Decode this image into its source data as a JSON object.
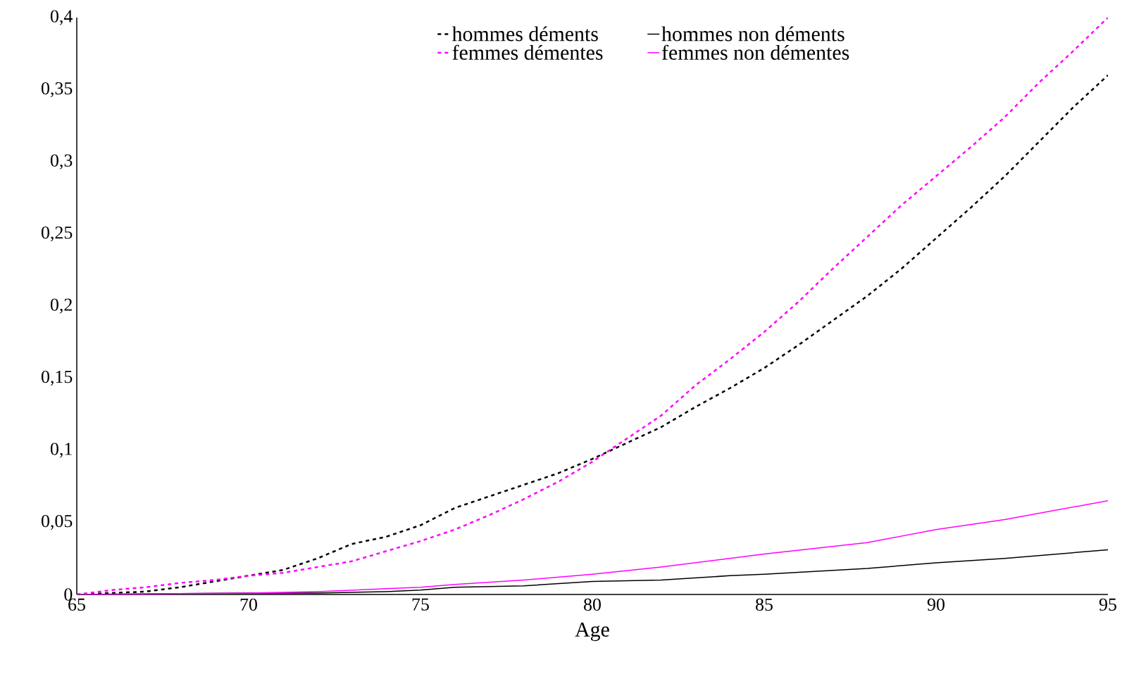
{
  "chart_data": {
    "type": "line",
    "xlabel": "Age",
    "xlim": [
      65,
      95
    ],
    "ylim": [
      0,
      0.4
    ],
    "xticks": [
      65,
      70,
      75,
      80,
      85,
      90,
      95
    ],
    "yticks": [
      0,
      {
        "value": 0.05,
        "label": "0,05"
      },
      {
        "value": 0.1,
        "label": "0,1"
      },
      {
        "value": 0.15,
        "label": "0,15"
      },
      {
        "value": 0.2,
        "label": "0,2"
      },
      {
        "value": 0.25,
        "label": "0,25"
      },
      {
        "value": 0.3,
        "label": "0,3"
      },
      {
        "value": 0.35,
        "label": "0,35"
      },
      {
        "value": 0.4,
        "label": "0,4"
      }
    ],
    "grid": false,
    "legend": "top",
    "marker": "none",
    "series": [
      {
        "name": "hommes déments",
        "color": "#000000",
        "line_style": "dotted",
        "x": [
          65,
          66,
          67,
          68,
          69,
          70,
          71,
          72,
          73,
          74,
          75,
          76,
          77,
          78,
          79,
          80,
          81,
          82,
          83,
          84,
          85,
          86,
          87,
          88,
          89,
          90,
          91,
          92,
          93,
          94,
          95
        ],
        "values": [
          0,
          0.001,
          0.002,
          0.005,
          0.009,
          0.013,
          0.017,
          0.025,
          0.035,
          0.04,
          0.048,
          0.06,
          0.068,
          0.076,
          0.084,
          0.094,
          0.105,
          0.116,
          0.13,
          0.143,
          0.157,
          0.173,
          0.19,
          0.207,
          0.226,
          0.247,
          0.268,
          0.29,
          0.314,
          0.338,
          0.36
        ]
      },
      {
        "name": "hommes non déments",
        "color": "#000000",
        "line_style": "solid",
        "x": [
          65,
          70,
          72,
          74,
          75,
          76,
          78,
          80,
          82,
          84,
          85,
          88,
          90,
          92,
          95
        ],
        "values": [
          0,
          0.001,
          0.001,
          0.002,
          0.003,
          0.005,
          0.006,
          0.009,
          0.01,
          0.013,
          0.014,
          0.018,
          0.022,
          0.025,
          0.031
        ]
      },
      {
        "name": "femmes démentes",
        "color": "#ff00ff",
        "line_style": "dotted",
        "x": [
          65,
          66,
          67,
          68,
          69,
          70,
          71,
          72,
          73,
          74,
          75,
          76,
          77,
          78,
          79,
          80,
          81,
          82,
          83,
          84,
          85,
          86,
          87,
          88,
          89,
          90,
          91,
          92,
          93,
          94,
          95
        ],
        "values": [
          0,
          0.003,
          0.005,
          0.008,
          0.01,
          0.013,
          0.015,
          0.019,
          0.023,
          0.03,
          0.037,
          0.045,
          0.055,
          0.066,
          0.078,
          0.092,
          0.108,
          0.124,
          0.145,
          0.163,
          0.182,
          0.203,
          0.226,
          0.248,
          0.27,
          0.29,
          0.31,
          0.331,
          0.355,
          0.377,
          0.4
        ]
      },
      {
        "name": "femmes non démentes",
        "color": "#ff00ff",
        "line_style": "solid",
        "x": [
          65,
          70,
          72,
          74,
          75,
          76,
          78,
          80,
          82,
          84,
          85,
          88,
          90,
          92,
          95
        ],
        "values": [
          0,
          0.001,
          0.002,
          0.004,
          0.005,
          0.007,
          0.01,
          0.014,
          0.019,
          0.025,
          0.028,
          0.036,
          0.045,
          0.052,
          0.065
        ]
      }
    ]
  }
}
